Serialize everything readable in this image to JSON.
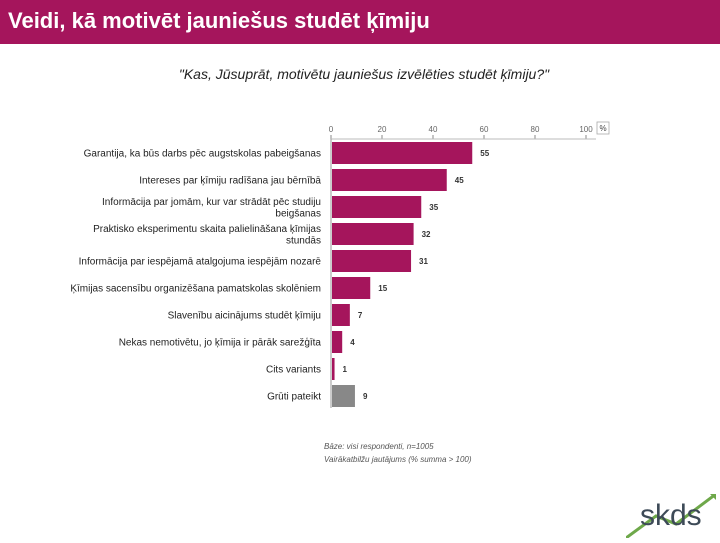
{
  "header": {
    "title": "Veidi, kā motivēt jauniešus studēt ķīmiju"
  },
  "colors": {
    "brand": "#a5155c",
    "bar": "#a5155c",
    "bar_other": "#888888",
    "logo_accent": "#6ea84a"
  },
  "chart_data": {
    "type": "bar",
    "orientation": "horizontal",
    "title": "\"Kas, Jūsuprāt, motivētu jauniešus izvēlēties studēt ķīmiju?\"",
    "unit_label": "%",
    "xlim": [
      0,
      100
    ],
    "xticks": [
      0,
      20,
      40,
      60,
      80,
      100
    ],
    "grid": false,
    "categories": [
      [
        "Garantija, ka būs darbs pēc augstskolas pabeigšanas"
      ],
      [
        "Intereses par ķīmiju radīšana jau bērnībā"
      ],
      [
        "Informācija par jomām, kur var strādāt pēc studiju",
        "beigšanas"
      ],
      [
        "Praktisko eksperimentu skaita palielināšana ķīmijas",
        "stundās"
      ],
      [
        "Informācija par iespējamā atalgojuma iespējām nozarē"
      ],
      [
        "Ķīmijas sacensību organizēšana pamatskolas skolēniem"
      ],
      [
        "Slavenību aicinājums studēt ķīmiju"
      ],
      [
        "Nekas nemotivētu, jo ķīmija ir pārāk sarežģīta"
      ],
      [
        "Cits variants"
      ],
      [
        "Grūti pateikt"
      ]
    ],
    "values": [
      55,
      45,
      35,
      32,
      31,
      15,
      7,
      4,
      1,
      9
    ],
    "value_labels": [
      "55",
      "45",
      "35",
      "32",
      "31",
      "15",
      "7",
      "4",
      "1",
      "9"
    ],
    "bar_colors": [
      "#a5155c",
      "#a5155c",
      "#a5155c",
      "#a5155c",
      "#a5155c",
      "#a5155c",
      "#a5155c",
      "#a5155c",
      "#a5155c",
      "#888888"
    ]
  },
  "footnotes": {
    "base": "Bāze: visi respondenti, n=1005",
    "multi": "Vairākatbilžu jautājums (% summa > 100)"
  },
  "logo": {
    "text": "skds"
  }
}
